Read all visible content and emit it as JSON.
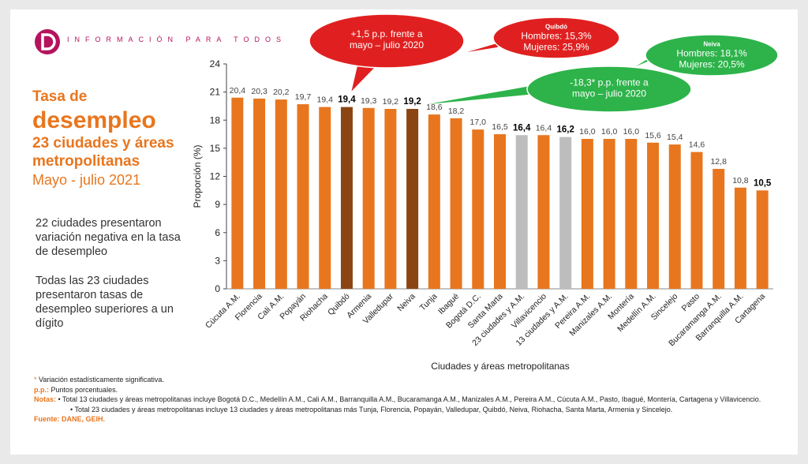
{
  "header": {
    "brand": "INFORMACIÓN PARA TODOS"
  },
  "title": {
    "line1": "Tasa de",
    "line2": "desempleo",
    "line3": "23 ciudades y áreas metropolitanas",
    "line4": "Mayo - julio 2021"
  },
  "body": {
    "p1": "22 ciudades presentaron variación negativa en la tasa de desempleo",
    "p2": "Todas las 23 ciudades presentaron tasas de desempleo superiores a un dígito"
  },
  "colors": {
    "bar": "#e8761e",
    "highlight": "#8b4513",
    "total": "#bdbdbd",
    "red": "#e02020",
    "green": "#2db34a"
  },
  "chart_data": {
    "type": "bar",
    "categories": [
      "Cúcuta A.M.",
      "Florencia",
      "Cali A.M.",
      "Popayán",
      "Riohacha",
      "Quibdó",
      "Armenia",
      "Valledupar",
      "Neiva",
      "Tunja",
      "Ibagué",
      "Bogotá D.C.",
      "Santa Marta",
      "23 ciudades y A.M.",
      "Villavicencio",
      "13 ciudades y A.M.",
      "Pereira A.M.",
      "Manizales A.M.",
      "Montería",
      "Medellín A.M.",
      "Sincelejo",
      "Pasto",
      "Bucaramanga A.M.",
      "Barranquilla A.M.",
      "Cartagena"
    ],
    "values": [
      20.4,
      20.3,
      20.2,
      19.7,
      19.4,
      19.4,
      19.3,
      19.2,
      19.2,
      18.6,
      18.2,
      17.0,
      16.5,
      16.4,
      16.4,
      16.2,
      16.0,
      16.0,
      16.0,
      15.6,
      15.4,
      14.6,
      12.8,
      10.8,
      10.5
    ],
    "value_labels": [
      "20,4",
      "20,3",
      "20,2",
      "19,7",
      "19,4",
      "19,4",
      "19,3",
      "19,2",
      "19,2",
      "18,6",
      "18,2",
      "17,0",
      "16,5",
      "16,4",
      "16,4",
      "16,2",
      "16,0",
      "16,0",
      "16,0",
      "15,6",
      "15,4",
      "14,6",
      "12,8",
      "10,8",
      "10,5"
    ],
    "bar_style": [
      "normal",
      "normal",
      "normal",
      "normal",
      "normal",
      "highlight",
      "normal",
      "normal",
      "highlight",
      "normal",
      "normal",
      "normal",
      "normal",
      "total",
      "normal",
      "total",
      "normal",
      "normal",
      "normal",
      "normal",
      "normal",
      "normal",
      "normal",
      "normal",
      "normal"
    ],
    "bold_labels": [
      5,
      8,
      13,
      15,
      24
    ],
    "ylim": [
      0,
      24
    ],
    "yticks": [
      "0",
      "3",
      "6",
      "9",
      "12",
      "15",
      "18",
      "21",
      "24"
    ],
    "ylabel": "Proporción (%)",
    "xlabel": "Ciudades y áreas metropolitanas",
    "grid": false,
    "callouts": [
      {
        "id": "quibdo-change",
        "color": "red",
        "lines": [
          "+1,5 p.p. frente a",
          "mayo – julio 2020"
        ],
        "points_to": "Quibdó"
      },
      {
        "id": "quibdo-sex",
        "color": "red",
        "title": "Quibdó",
        "lines": [
          "Hombres: 15,3%",
          "Mujeres: 25,9%"
        ]
      },
      {
        "id": "neiva-change",
        "color": "green",
        "lines": [
          "-18,3* p.p. frente a",
          "mayo – julio 2020"
        ],
        "points_to": "Neiva"
      },
      {
        "id": "neiva-sex",
        "color": "green",
        "title": "Neiva",
        "lines": [
          "Hombres: 18,1%",
          "Mujeres: 20,5%"
        ]
      }
    ]
  },
  "notes": {
    "sig": "Variación estadísticamente significativa.",
    "sig_mark": "*",
    "pp_label": "p.p.:",
    "pp_text": "Puntos porcentuales.",
    "notes_label": "Notas:",
    "note1": "• Total 13 ciudades y áreas metropolitanas incluye Bogotá D.C., Medellín A.M., Cali A.M., Barranquilla A.M., Bucaramanga A.M., Manizales A.M., Pereira A.M., Cúcuta A.M., Pasto, Ibagué, Montería, Cartagena y Villavicencio.",
    "note2": "• Total 23 ciudades y áreas metropolitanas incluye 13 ciudades y áreas metropolitanas más Tunja, Florencia, Popayán, Valledupar, Quibdó, Neiva, Riohacha, Santa Marta, Armenia y Sincelejo.",
    "source_label": "Fuente:",
    "source_text": "DANE, GEIH."
  }
}
